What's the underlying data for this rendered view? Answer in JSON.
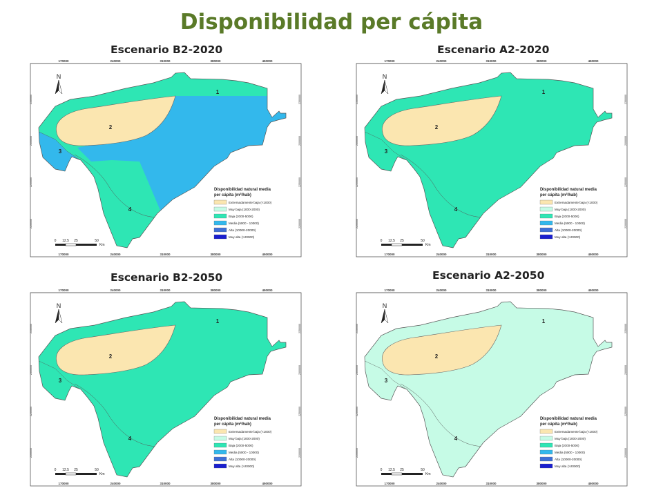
{
  "title": "Disponibilidad per cápita",
  "map_common": {
    "top_ticks": [
      "170000",
      "240000",
      "310000",
      "380000",
      "450000"
    ],
    "side_ticks": [
      "2350000",
      "2300000",
      "2250000",
      "2200000"
    ],
    "north": "N",
    "scale": {
      "labels": [
        "0",
        "12.5",
        "25",
        "50"
      ],
      "unit": "Km"
    },
    "zones": [
      "1",
      "2",
      "3",
      "4"
    ],
    "legend": {
      "title_line1": "Disponibilidad natural media",
      "title_line2": "per cápita",
      "title_unit_pre": "(m",
      "title_unit_sup": "3",
      "title_unit_post": "/hab)",
      "items": [
        {
          "label": "Extremadamente baja (<1000)",
          "color": "#fbe6b0"
        },
        {
          "label": "Muy baja (1000-2000)",
          "color": "#c6fbe6"
        },
        {
          "label": "Baja (2000-5000)",
          "color": "#2ee6b4"
        },
        {
          "label": "Media (5000 - 10000)",
          "color": "#33b8ec"
        },
        {
          "label": "Alta (10000-20000)",
          "color": "#3f6fd6"
        },
        {
          "label": "Muy alta (>20000)",
          "color": "#1a1fcf"
        }
      ]
    }
  },
  "panels": [
    {
      "name": "Escenario B2-2020",
      "zone_colors": {
        "1": "#2ee6b4",
        "2": "#fbe6b0",
        "3": "#33b8ec",
        "4": "#2ee6b4",
        "5": "#33b8ec"
      }
    },
    {
      "name": "Escenario A2-2020",
      "zone_colors": {
        "1": "#2ee6b4",
        "2": "#fbe6b0",
        "3": "#2ee6b4",
        "4": "#2ee6b4",
        "5": "#2ee6b4"
      }
    },
    {
      "name": "Escenario B2-2050",
      "zone_colors": {
        "1": "#2ee6b4",
        "2": "#fbe6b0",
        "3": "#2ee6b4",
        "4": "#2ee6b4",
        "5": "#2ee6b4"
      }
    },
    {
      "name": "Escenario A2-2050",
      "zone_colors": {
        "1": "#c6fbe6",
        "2": "#fbe6b0",
        "3": "#c6fbe6",
        "4": "#c6fbe6",
        "5": "#c6fbe6"
      }
    }
  ]
}
